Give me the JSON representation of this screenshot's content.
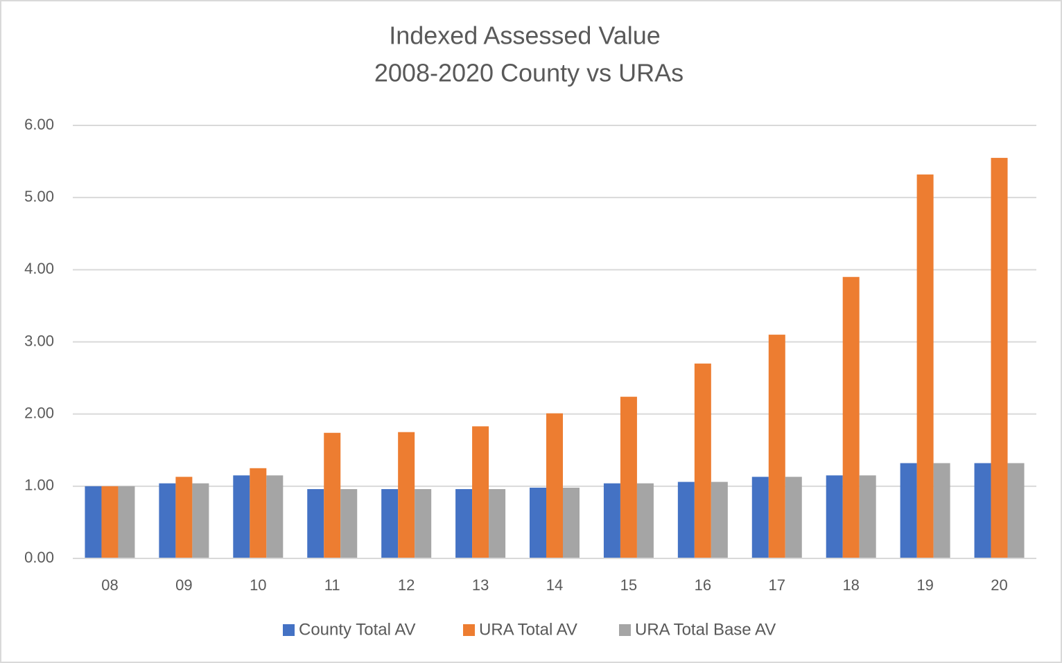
{
  "chart_data": {
    "type": "bar",
    "title": "Indexed Assessed Value",
    "subtitle": "2008-2020 County vs URAs",
    "categories": [
      "08",
      "09",
      "10",
      "11",
      "12",
      "13",
      "14",
      "15",
      "16",
      "17",
      "18",
      "19",
      "20"
    ],
    "series": [
      {
        "name": "County Total AV",
        "color": "#4472c4",
        "values": [
          1.0,
          1.04,
          1.15,
          0.96,
          0.96,
          0.96,
          0.98,
          1.04,
          1.06,
          1.13,
          1.15,
          1.32,
          1.32
        ]
      },
      {
        "name": "URA Total AV",
        "color": "#ed7d31",
        "values": [
          1.0,
          1.13,
          1.25,
          1.74,
          1.75,
          1.83,
          2.01,
          2.24,
          2.7,
          3.1,
          3.9,
          5.32,
          5.55
        ]
      },
      {
        "name": "URA Total Base AV",
        "color": "#a5a5a5",
        "values": [
          1.0,
          1.04,
          1.15,
          0.96,
          0.96,
          0.96,
          0.98,
          1.04,
          1.06,
          1.13,
          1.15,
          1.32,
          1.32
        ]
      }
    ],
    "ylim": [
      0,
      6
    ],
    "yticks": [
      {
        "value": 0,
        "label": "0.00"
      },
      {
        "value": 1,
        "label": "1.00"
      },
      {
        "value": 2,
        "label": "2.00"
      },
      {
        "value": 3,
        "label": "3.00"
      },
      {
        "value": 4,
        "label": "4.00"
      },
      {
        "value": 5,
        "label": "5.00"
      },
      {
        "value": 6,
        "label": "6.00"
      }
    ],
    "grid": true,
    "legend": "bottom"
  }
}
